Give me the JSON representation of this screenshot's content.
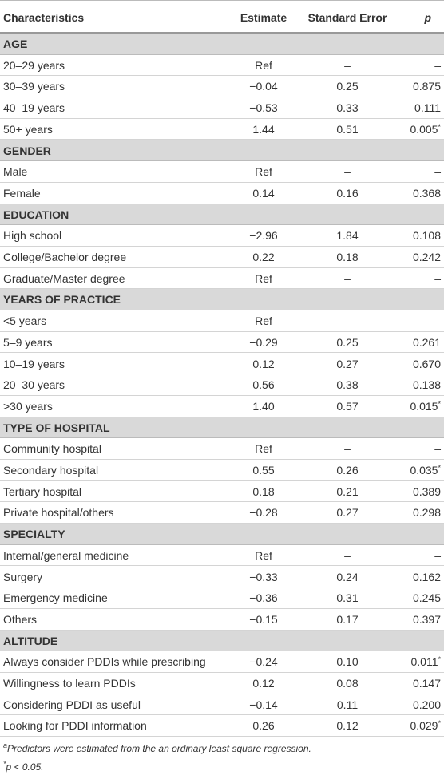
{
  "header": {
    "characteristics": "Characteristics",
    "estimate": "Estimate",
    "se": "Standard Error",
    "p": "p"
  },
  "sections": [
    {
      "title": "AGE",
      "rows": [
        {
          "label": "20–29 years",
          "estimate": "Ref",
          "se": "–",
          "p": "–"
        },
        {
          "label": "30–39 years",
          "estimate": "−0.04",
          "se": "0.25",
          "p": "0.875"
        },
        {
          "label": "40–19 years",
          "estimate": "−0.53",
          "se": "0.33",
          "p": "0.111"
        },
        {
          "label": "50+ years",
          "estimate": "1.44",
          "se": "0.51",
          "p": "0.005",
          "note": "*"
        }
      ]
    },
    {
      "title": "GENDER",
      "rows": [
        {
          "label": "Male",
          "estimate": "Ref",
          "se": "–",
          "p": "–"
        },
        {
          "label": "Female",
          "estimate": "0.14",
          "se": "0.16",
          "p": "0.368"
        }
      ]
    },
    {
      "title": "EDUCATION",
      "rows": [
        {
          "label": "High school",
          "estimate": "−2.96",
          "se": "1.84",
          "p": "0.108"
        },
        {
          "label": "College/Bachelor degree",
          "estimate": "0.22",
          "se": "0.18",
          "p": "0.242"
        },
        {
          "label": "Graduate/Master degree",
          "estimate": "Ref",
          "se": "–",
          "p": "–"
        }
      ]
    },
    {
      "title": "YEARS OF PRACTICE",
      "rows": [
        {
          "label": "<5 years",
          "estimate": "Ref",
          "se": "–",
          "p": "–"
        },
        {
          "label": "5–9 years",
          "estimate": "−0.29",
          "se": "0.25",
          "p": "0.261"
        },
        {
          "label": "10–19 years",
          "estimate": "0.12",
          "se": "0.27",
          "p": "0.670"
        },
        {
          "label": "20–30 years",
          "estimate": "0.56",
          "se": "0.38",
          "p": "0.138"
        },
        {
          "label": ">30 years",
          "estimate": "1.40",
          "se": "0.57",
          "p": "0.015",
          "note": "*"
        }
      ]
    },
    {
      "title": "TYPE OF HOSPITAL",
      "rows": [
        {
          "label": "Community hospital",
          "estimate": "Ref",
          "se": "–",
          "p": "–"
        },
        {
          "label": "Secondary hospital",
          "estimate": "0.55",
          "se": "0.26",
          "p": "0.035",
          "note": "*"
        },
        {
          "label": "Tertiary hospital",
          "estimate": "0.18",
          "se": "0.21",
          "p": "0.389"
        },
        {
          "label": "Private hospital/others",
          "estimate": "−0.28",
          "se": "0.27",
          "p": "0.298"
        }
      ]
    },
    {
      "title": "SPECIALTY",
      "rows": [
        {
          "label": "Internal/general medicine",
          "estimate": "Ref",
          "se": "–",
          "p": "–"
        },
        {
          "label": "Surgery",
          "estimate": "−0.33",
          "se": "0.24",
          "p": "0.162"
        },
        {
          "label": "Emergency medicine",
          "estimate": "−0.36",
          "se": "0.31",
          "p": "0.245"
        },
        {
          "label": "Others",
          "estimate": "−0.15",
          "se": "0.17",
          "p": "0.397"
        }
      ]
    },
    {
      "title": "ALTITUDE",
      "rows": [
        {
          "label": "Always consider PDDIs while prescribing",
          "estimate": "−0.24",
          "se": "0.10",
          "p": "0.011",
          "note": "*"
        },
        {
          "label": "Willingness to learn PDDIs",
          "estimate": "0.12",
          "se": "0.08",
          "p": "0.147"
        },
        {
          "label": "Considering PDDI as useful",
          "estimate": "−0.14",
          "se": "0.11",
          "p": "0.200"
        },
        {
          "label": "Looking for PDDI information",
          "estimate": "0.26",
          "se": "0.12",
          "p": "0.029",
          "note": "*"
        }
      ]
    }
  ],
  "footnotes": [
    {
      "mark": "a",
      "text": "Predictors were estimated from the an ordinary least square regression."
    },
    {
      "mark": "*",
      "text": "p < 0.05."
    }
  ]
}
